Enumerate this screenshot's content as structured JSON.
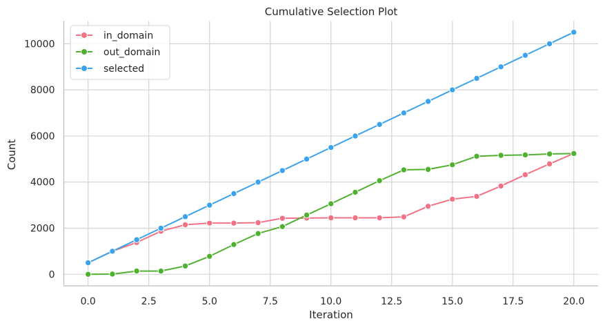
{
  "chart_data": {
    "type": "line",
    "title": "Cumulative Selection Plot",
    "xlabel": "Iteration",
    "ylabel": "Count",
    "x": [
      0,
      1,
      2,
      3,
      4,
      5,
      6,
      7,
      8,
      9,
      10,
      11,
      12,
      13,
      14,
      15,
      16,
      17,
      18,
      19,
      20
    ],
    "xlim": [
      -1,
      21
    ],
    "ylim": [
      -500,
      11000
    ],
    "xticks": [
      0,
      2.5,
      5,
      7.5,
      10,
      12.5,
      15,
      17.5,
      20
    ],
    "xtick_labels": [
      "0.0",
      "2.5",
      "5.0",
      "7.5",
      "10.0",
      "12.5",
      "15.0",
      "17.5",
      "20.0"
    ],
    "yticks": [
      0,
      2000,
      4000,
      6000,
      8000,
      10000
    ],
    "ytick_labels": [
      "0",
      "2000",
      "4000",
      "6000",
      "8000",
      "10000"
    ],
    "grid": true,
    "legend_position": "top-left",
    "series": [
      {
        "name": "in_domain",
        "color": "#f07284",
        "values": [
          500,
          1000,
          1380,
          1870,
          2150,
          2220,
          2220,
          2240,
          2430,
          2440,
          2450,
          2450,
          2450,
          2490,
          2950,
          3260,
          3380,
          3830,
          4320,
          4790,
          5240
        ]
      },
      {
        "name": "out_domain",
        "color": "#50b131",
        "values": [
          0,
          10,
          140,
          140,
          360,
          780,
          1290,
          1770,
          2070,
          2570,
          3060,
          3560,
          4060,
          4530,
          4550,
          4750,
          5120,
          5160,
          5180,
          5220,
          5240
        ]
      },
      {
        "name": "selected",
        "color": "#3ba3ec",
        "values": [
          500,
          1000,
          1500,
          2000,
          2500,
          3000,
          3500,
          4000,
          4500,
          5000,
          5500,
          6000,
          6500,
          7000,
          7500,
          8000,
          8500,
          9000,
          9500,
          10000,
          10500
        ]
      }
    ]
  }
}
